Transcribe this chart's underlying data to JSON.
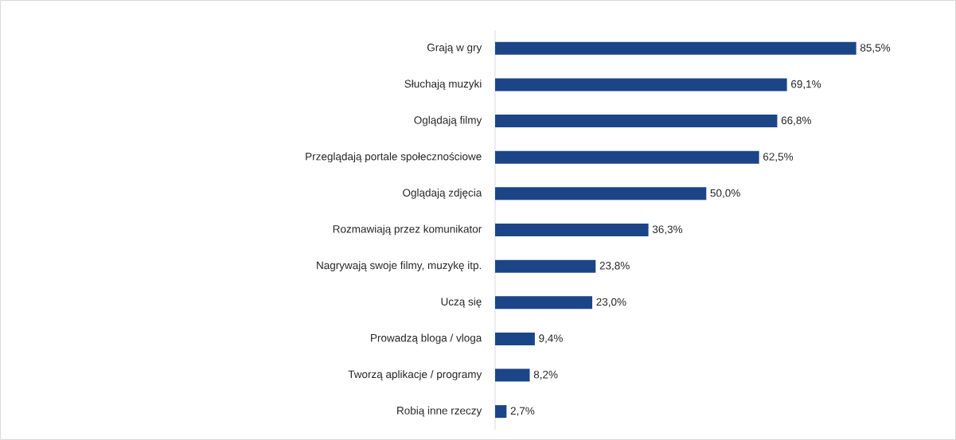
{
  "chart_data": {
    "type": "bar",
    "orientation": "horizontal",
    "color": "#1c4587",
    "categories": [
      "Grają w gry",
      "Słuchają muzyki",
      "Oglądają filmy",
      "Przeglądają portale społecznościowe",
      "Oglądają zdjęcia",
      "Rozmawiają przez komunikator",
      "Nagrywają swoje filmy, muzykę itp.",
      "Uczą się",
      "Prowadzą bloga / vloga",
      "Tworzą aplikacje / programy",
      "Robią inne rzeczy"
    ],
    "values": [
      85.5,
      69.1,
      66.8,
      62.5,
      50.0,
      36.3,
      23.8,
      23.0,
      9.4,
      8.2,
      2.7
    ],
    "value_labels": [
      "85,5%",
      "69,1%",
      "66,8%",
      "62,5%",
      "50,0%",
      "36,3%",
      "23,8%",
      "23,0%",
      "9,4%",
      "8,2%",
      "2,7%"
    ]
  }
}
